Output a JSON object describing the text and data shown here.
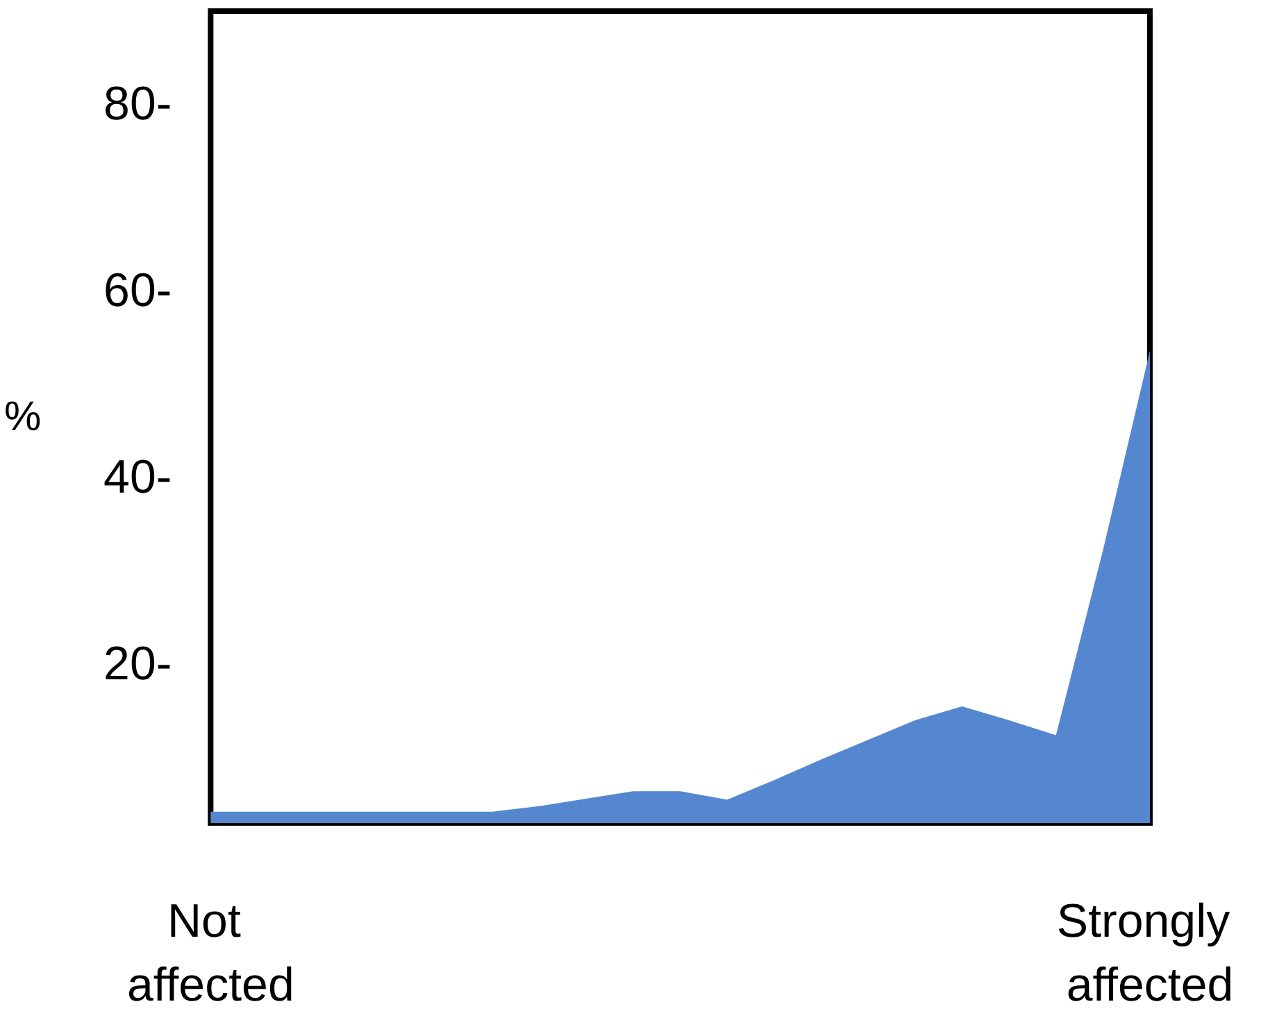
{
  "chart_data": {
    "type": "area",
    "ylabel": "%",
    "categories": [
      "Not affected",
      null,
      null,
      null,
      null,
      null,
      null,
      null,
      null,
      null,
      null,
      null,
      null,
      null,
      null,
      null,
      null,
      null,
      null,
      null,
      "Strongly affected"
    ],
    "series": [
      {
        "color": "#5587d0",
        "values": [
          4.2,
          4.2,
          4.2,
          4.2,
          4.2,
          4.2,
          4.2,
          4.8,
          5.6,
          6.4,
          6.4,
          5.5,
          7.6,
          9.8,
          11.9,
          14.0,
          15.5,
          14.0,
          12.4,
          32.2,
          53.6
        ]
      }
    ],
    "ylim": [
      3,
      90
    ],
    "yticks": [
      {
        "value": 20,
        "label": "20-"
      },
      {
        "value": 40,
        "label": "40-"
      },
      {
        "value": 60,
        "label": "60-"
      },
      {
        "value": 80,
        "label": "80-"
      }
    ],
    "grid": false
  }
}
